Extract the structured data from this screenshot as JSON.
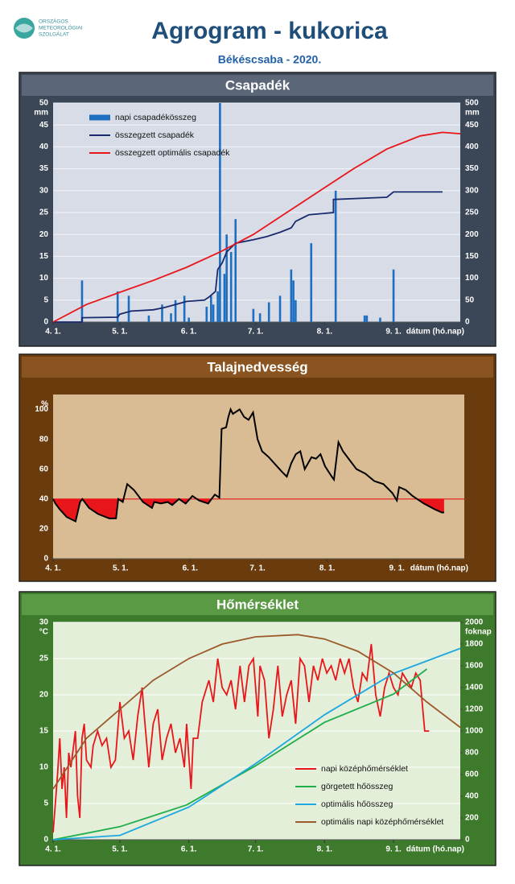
{
  "header": {
    "logo": [
      "ORSZÁGOS",
      "METEOROLÓGIAI",
      "SZOLGÁLAT"
    ],
    "title": "Agrogram - kukorica",
    "subtitle": "Békéscsaba - 2020."
  },
  "chart_data": [
    {
      "type": "bar",
      "title": "Csapadék",
      "y_label": "mm",
      "y2_label": "mm",
      "x_label": "dátum (hó.nap)",
      "xlim": [
        0,
        183
      ],
      "xticks": [
        {
          "value": 0,
          "label": "4. 1."
        },
        {
          "value": 30,
          "label": "5. 1."
        },
        {
          "value": 61,
          "label": "6. 1."
        },
        {
          "value": 91,
          "label": "7. 1."
        },
        {
          "value": 122,
          "label": "8. 1."
        },
        {
          "value": 153,
          "label": "9. 1."
        }
      ],
      "ylim": [
        0,
        50
      ],
      "yticks": [
        0,
        5,
        10,
        15,
        20,
        25,
        30,
        35,
        40,
        45,
        50
      ],
      "y2lim": [
        0,
        500
      ],
      "y2ticks": [
        0,
        50,
        100,
        150,
        200,
        250,
        300,
        350,
        400,
        450,
        500
      ],
      "grid": true,
      "legend": "upper left",
      "series": [
        {
          "name": "napi csapadékösszeg",
          "type": "bar",
          "color": "#1f6fc0",
          "x": [
            13,
            29,
            34,
            43,
            49,
            53,
            55,
            59,
            61,
            69,
            71,
            72,
            74,
            75,
            77,
            78,
            80,
            82,
            90,
            93,
            97,
            102,
            107,
            108,
            109,
            116,
            127,
            140,
            141,
            147,
            153
          ],
          "values": [
            9.5,
            7,
            6,
            1.5,
            4,
            2,
            5,
            6,
            1,
            3.5,
            6,
            4,
            7,
            50,
            11,
            20,
            16,
            23.5,
            3,
            2,
            4.5,
            6,
            12,
            9.5,
            5,
            18,
            30,
            1.5,
            1.5,
            1,
            12
          ]
        },
        {
          "name": "összegzett csapadék",
          "type": "line",
          "axis": "y2",
          "color": "#1a2a6e",
          "x": [
            0,
            13,
            13,
            29,
            30,
            35,
            45,
            50,
            55,
            60,
            68,
            70,
            73,
            74,
            76,
            78,
            82,
            90,
            96,
            102,
            107,
            109,
            115,
            126,
            126,
            150,
            153,
            175
          ],
          "values": [
            0,
            0,
            10,
            11,
            18,
            25,
            28,
            33,
            40,
            47,
            50,
            57,
            70,
            120,
            135,
            160,
            180,
            188,
            195,
            205,
            215,
            230,
            245,
            250,
            280,
            285,
            297,
            297
          ]
        },
        {
          "name": "összegzett optimális  csapadék",
          "type": "line",
          "axis": "y2",
          "color": "#e8161b",
          "x": [
            0,
            15,
            30,
            45,
            60,
            75,
            90,
            105,
            120,
            135,
            150,
            165,
            175,
            183
          ],
          "values": [
            0,
            40,
            68,
            95,
            125,
            160,
            200,
            250,
            300,
            350,
            395,
            425,
            433,
            430
          ]
        }
      ]
    },
    {
      "type": "line",
      "title": "Talajnedvesség",
      "y_label": "%",
      "x_label": "dátum (hó.nap)",
      "xlim": [
        0,
        183
      ],
      "xticks": [
        {
          "value": 0,
          "label": "4. 1."
        },
        {
          "value": 30,
          "label": "5. 1."
        },
        {
          "value": 61,
          "label": "6. 1."
        },
        {
          "value": 91,
          "label": "7. 1."
        },
        {
          "value": 122,
          "label": "8. 1."
        },
        {
          "value": 153,
          "label": "9. 1."
        }
      ],
      "ylim": [
        0,
        110
      ],
      "yticks": [
        0,
        20,
        40,
        60,
        80,
        100
      ],
      "grid": false,
      "threshold": 40,
      "threshold_color": "#e8161b",
      "series": [
        {
          "color": "#000000",
          "x": [
            0,
            1,
            3,
            6,
            10,
            12,
            13,
            16,
            20,
            25,
            28,
            29,
            31,
            33,
            36,
            40,
            44,
            45,
            48,
            51,
            53,
            56,
            59,
            62,
            65,
            69,
            72,
            74,
            75,
            77,
            78,
            79,
            80,
            83,
            85,
            87,
            89,
            91,
            93,
            96,
            99,
            102,
            104,
            106,
            108,
            110,
            112,
            115,
            117,
            119,
            121,
            124,
            125,
            127,
            129,
            132,
            135,
            139,
            143,
            147,
            151,
            153,
            154,
            157,
            160,
            165,
            170,
            173,
            174
          ],
          "values": [
            40,
            37,
            33,
            28,
            25,
            38,
            40,
            34,
            30,
            27,
            27,
            40,
            38,
            50,
            46,
            38,
            34,
            38,
            37,
            38,
            36,
            40,
            37,
            42,
            39,
            37,
            43,
            41,
            87,
            88,
            95,
            100,
            97,
            100,
            95,
            93,
            98,
            80,
            72,
            68,
            63,
            58,
            55,
            64,
            70,
            72,
            60,
            68,
            67,
            70,
            62,
            55,
            53,
            78,
            72,
            66,
            60,
            57,
            52,
            50,
            44,
            39,
            48,
            46,
            42,
            37,
            33,
            31,
            31
          ]
        }
      ]
    },
    {
      "type": "line",
      "title": "Hőmérséklet",
      "y_label": "°C",
      "y2_label": "foknap",
      "x_label": "dátum (hó.nap)",
      "xlim": [
        0,
        183
      ],
      "xticks": [
        {
          "value": 0,
          "label": "4. 1."
        },
        {
          "value": 30,
          "label": "5. 1."
        },
        {
          "value": 61,
          "label": "6. 1."
        },
        {
          "value": 91,
          "label": "7. 1."
        },
        {
          "value": 122,
          "label": "8. 1."
        },
        {
          "value": 153,
          "label": "9. 1."
        }
      ],
      "ylim": [
        0,
        30
      ],
      "yticks": [
        0,
        5,
        10,
        15,
        20,
        25,
        30
      ],
      "y2lim": [
        0,
        2000
      ],
      "y2ticks": [
        0,
        200,
        400,
        600,
        800,
        1000,
        1200,
        1400,
        1600,
        1800,
        2000
      ],
      "grid": true,
      "legend": "lower right",
      "series": [
        {
          "name": "napi középhőmérséklet",
          "color": "#e8161b",
          "x": [
            0,
            1,
            2,
            3,
            4,
            5,
            6,
            7,
            8,
            10,
            11,
            12,
            13,
            14,
            15,
            17,
            18,
            20,
            22,
            24,
            26,
            28,
            30,
            32,
            34,
            36,
            38,
            40,
            41,
            43,
            45,
            47,
            49,
            51,
            53,
            55,
            57,
            59,
            60,
            62,
            63,
            65,
            67,
            70,
            72,
            74,
            76,
            78,
            80,
            82,
            84,
            86,
            88,
            90,
            92,
            93,
            95,
            97,
            99,
            101,
            103,
            105,
            107,
            109,
            111,
            113,
            115,
            117,
            119,
            121,
            123,
            125,
            127,
            129,
            131,
            133,
            135,
            137,
            139,
            141,
            143,
            145,
            147,
            149,
            151,
            153,
            155,
            157,
            159,
            161,
            163,
            165,
            167,
            169
          ],
          "values": [
            1,
            5,
            9,
            14,
            7,
            10,
            3,
            12,
            10,
            15,
            6,
            3,
            14,
            16,
            11,
            10,
            13,
            15,
            13,
            14,
            10,
            11,
            19,
            14,
            15,
            11,
            17,
            21,
            17,
            10,
            16,
            18,
            11,
            14,
            16,
            12,
            14,
            10,
            16,
            7,
            14,
            14,
            19,
            22,
            19,
            25,
            21,
            20,
            22,
            18,
            24,
            19,
            24,
            25,
            17,
            24,
            22,
            14,
            18,
            24,
            17,
            20,
            22,
            16,
            25,
            24,
            19,
            24,
            22,
            25,
            23,
            24,
            22,
            25,
            23,
            25,
            21,
            19,
            23,
            22,
            27,
            20,
            17,
            21,
            23,
            21,
            20,
            23,
            22,
            21,
            23,
            22,
            15,
            15
          ]
        },
        {
          "name": "görgetett hőösszeg",
          "axis": "y2",
          "color": "#1fae4a",
          "x": [
            0,
            30,
            60,
            91,
            122,
            153,
            168
          ],
          "values": [
            0,
            120,
            320,
            680,
            1080,
            1340,
            1570
          ]
        },
        {
          "name": "optimális hőösszeg",
          "axis": "y2",
          "color": "#1ea8df",
          "x": [
            0,
            30,
            61,
            91,
            122,
            153,
            183
          ],
          "values": [
            0,
            40,
            300,
            700,
            1150,
            1530,
            1760
          ]
        },
        {
          "name": "optimális napi középhőmérséklet",
          "color": "#9c5a2a",
          "x": [
            0,
            15,
            30,
            45,
            61,
            76,
            91,
            110,
            122,
            137,
            153,
            168,
            183
          ],
          "values": [
            7,
            14,
            18,
            22,
            25,
            27,
            28,
            28.3,
            27.7,
            26,
            23,
            19,
            15.5
          ]
        }
      ]
    }
  ]
}
